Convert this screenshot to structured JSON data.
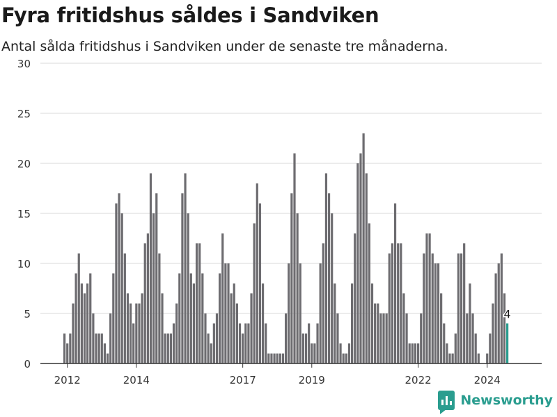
{
  "title": "Fyra fritidshus såldes i Sandviken",
  "subtitle": "Antal sålda fritidshus i Sandviken under de senaste tre månaderna.",
  "brand": {
    "name": "Newsworthy"
  },
  "colors": {
    "bar": "#6d6c70",
    "highlight": "#2a9d8f",
    "grid": "#d9d9d9",
    "axis": "#333333"
  },
  "chart_data": {
    "type": "bar",
    "yticks": [
      0,
      5,
      10,
      15,
      20,
      25,
      30
    ],
    "xticks": [
      "2012",
      "2014",
      "2017",
      "2019",
      "2022",
      "2024"
    ],
    "ylim": [
      0,
      30
    ],
    "grid": true,
    "series": [
      {
        "values": [
          3,
          2,
          3,
          6,
          9,
          11,
          8,
          7,
          8,
          9,
          5,
          3,
          3,
          3,
          2,
          1,
          5,
          9,
          16,
          17,
          15,
          11,
          7,
          6,
          4,
          6,
          6,
          7,
          12,
          13,
          19,
          15,
          17,
          11,
          7,
          3,
          3,
          3,
          4,
          6,
          9,
          17,
          19,
          15,
          9,
          8,
          12,
          12,
          9,
          5,
          3,
          2,
          4,
          5,
          9,
          13,
          10,
          10,
          7,
          8,
          6,
          4,
          3,
          4,
          4,
          7,
          14,
          18,
          16,
          8,
          4,
          1,
          1,
          1,
          1,
          1,
          1,
          5,
          10,
          17,
          21,
          15,
          10,
          3,
          3,
          4,
          2,
          2,
          4,
          10,
          12,
          19,
          17,
          15,
          8,
          5,
          2,
          1,
          1,
          2,
          8,
          13,
          20,
          21,
          23,
          19,
          14,
          8,
          6,
          6,
          5,
          5,
          5,
          11,
          12,
          16,
          12,
          12,
          7,
          5,
          2,
          2,
          2,
          2,
          5,
          11,
          13,
          13,
          11,
          10,
          10,
          7,
          4,
          2,
          1,
          1,
          3,
          11,
          11,
          12,
          5,
          8,
          5,
          3,
          1,
          0,
          0,
          1,
          3,
          6,
          9,
          10,
          11,
          7,
          4
        ]
      }
    ],
    "annotations": [
      {
        "label": "4",
        "value": 4
      }
    ]
  }
}
